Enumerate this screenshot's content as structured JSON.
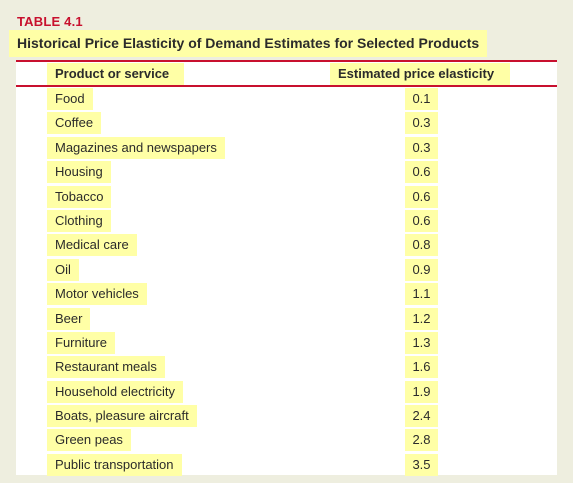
{
  "table_label": "TABLE 4.1",
  "table_title": "Historical Price Elasticity of Demand Estimates for Selected Products",
  "columns": {
    "product": "Product or service",
    "elasticity": "Estimated price elasticity"
  },
  "rows": [
    {
      "product": "Food",
      "elasticity": "0.1"
    },
    {
      "product": "Coffee",
      "elasticity": "0.3"
    },
    {
      "product": "Magazines and newspapers",
      "elasticity": "0.3"
    },
    {
      "product": "Housing",
      "elasticity": "0.6"
    },
    {
      "product": "Tobacco",
      "elasticity": "0.6"
    },
    {
      "product": "Clothing",
      "elasticity": "0.6"
    },
    {
      "product": "Medical care",
      "elasticity": "0.8"
    },
    {
      "product": "Oil",
      "elasticity": "0.9"
    },
    {
      "product": "Motor vehicles",
      "elasticity": "1.1"
    },
    {
      "product": "Beer",
      "elasticity": "1.2"
    },
    {
      "product": "Furniture",
      "elasticity": "1.3"
    },
    {
      "product": "Restaurant meals",
      "elasticity": "1.6"
    },
    {
      "product": "Household electricity",
      "elasticity": "1.9"
    },
    {
      "product": "Boats, pleasure aircraft",
      "elasticity": "2.4"
    },
    {
      "product": "Green peas",
      "elasticity": "2.8"
    },
    {
      "product": "Public transportation",
      "elasticity": "3.5"
    }
  ],
  "colors": {
    "accent_red": "#c8102e",
    "highlight_yellow": "#ffffa6",
    "page_background": "#eeeedf",
    "panel_background": "#ffffff"
  }
}
